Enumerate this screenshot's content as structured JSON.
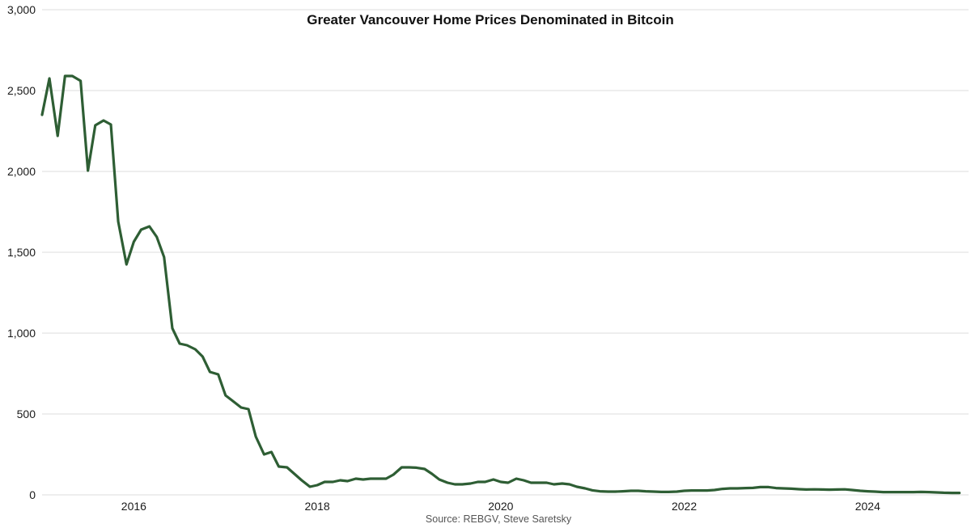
{
  "chart_data": {
    "type": "line",
    "title": "Greater Vancouver Home Prices Denominated in Bitcoin",
    "source": "Source: REBGV, Steve Saretsky",
    "xlabel": "",
    "ylabel": "",
    "xlim": [
      2015.0,
      2025.1
    ],
    "ylim": [
      0,
      3000
    ],
    "yticks": [
      0,
      500,
      1000,
      1500,
      2000,
      2500,
      3000
    ],
    "ytick_labels": [
      "0",
      "500",
      "1,000",
      "1,500",
      "2,000",
      "2,500",
      "3,000"
    ],
    "xticks": [
      2016,
      2018,
      2020,
      2022,
      2024
    ],
    "xtick_labels": [
      "2016",
      "2018",
      "2020",
      "2022",
      "2024"
    ],
    "grid": true,
    "legend": "none",
    "series_color": "#2e5e34",
    "x": [
      2015.0,
      2015.08,
      2015.17,
      2015.25,
      2015.33,
      2015.42,
      2015.5,
      2015.58,
      2015.67,
      2015.75,
      2015.83,
      2015.92,
      2016.0,
      2016.08,
      2016.17,
      2016.25,
      2016.33,
      2016.42,
      2016.5,
      2016.58,
      2016.67,
      2016.75,
      2016.83,
      2016.92,
      2017.0,
      2017.08,
      2017.17,
      2017.25,
      2017.33,
      2017.42,
      2017.5,
      2017.58,
      2017.67,
      2017.75,
      2017.83,
      2017.92,
      2018.0,
      2018.08,
      2018.17,
      2018.25,
      2018.33,
      2018.42,
      2018.5,
      2018.58,
      2018.67,
      2018.75,
      2018.83,
      2018.92,
      2019.0,
      2019.08,
      2019.17,
      2019.25,
      2019.33,
      2019.42,
      2019.5,
      2019.58,
      2019.67,
      2019.75,
      2019.83,
      2019.92,
      2020.0,
      2020.08,
      2020.17,
      2020.25,
      2020.33,
      2020.42,
      2020.5,
      2020.58,
      2020.67,
      2020.75,
      2020.83,
      2020.92,
      2021.0,
      2021.08,
      2021.17,
      2021.25,
      2021.33,
      2021.42,
      2021.5,
      2021.58,
      2021.67,
      2021.75,
      2021.83,
      2021.92,
      2022.0,
      2022.08,
      2022.17,
      2022.25,
      2022.33,
      2022.42,
      2022.5,
      2022.58,
      2022.67,
      2022.75,
      2022.83,
      2022.92,
      2023.0,
      2023.08,
      2023.17,
      2023.25,
      2023.33,
      2023.42,
      2023.5,
      2023.58,
      2023.67,
      2023.75,
      2023.83,
      2023.92,
      2024.0,
      2024.08,
      2024.17,
      2024.25,
      2024.33,
      2024.42,
      2024.5,
      2024.58,
      2024.67,
      2024.75,
      2024.83,
      2024.92,
      2025.0
    ],
    "series": [
      {
        "values": [
          2350,
          2575,
          2220,
          2590,
          2590,
          2560,
          2005,
          2285,
          2315,
          2290,
          1690,
          1425,
          1565,
          1640,
          1660,
          1595,
          1470,
          1030,
          935,
          925,
          900,
          855,
          760,
          745,
          615,
          580,
          540,
          530,
          360,
          250,
          265,
          175,
          170,
          130,
          90,
          50,
          60,
          80,
          80,
          90,
          85,
          100,
          95,
          100,
          100,
          100,
          125,
          170,
          170,
          168,
          160,
          130,
          95,
          75,
          65,
          65,
          70,
          80,
          80,
          95,
          80,
          75,
          100,
          90,
          75,
          75,
          75,
          65,
          70,
          65,
          50,
          40,
          28,
          22,
          20,
          20,
          22,
          25,
          25,
          22,
          20,
          18,
          18,
          20,
          25,
          27,
          27,
          27,
          30,
          37,
          40,
          40,
          42,
          43,
          48,
          48,
          42,
          40,
          38,
          35,
          33,
          34,
          33,
          32,
          33,
          34,
          30,
          25,
          22,
          20,
          17,
          17,
          17,
          17,
          17,
          18,
          17,
          15,
          13,
          12,
          12
        ]
      }
    ]
  }
}
